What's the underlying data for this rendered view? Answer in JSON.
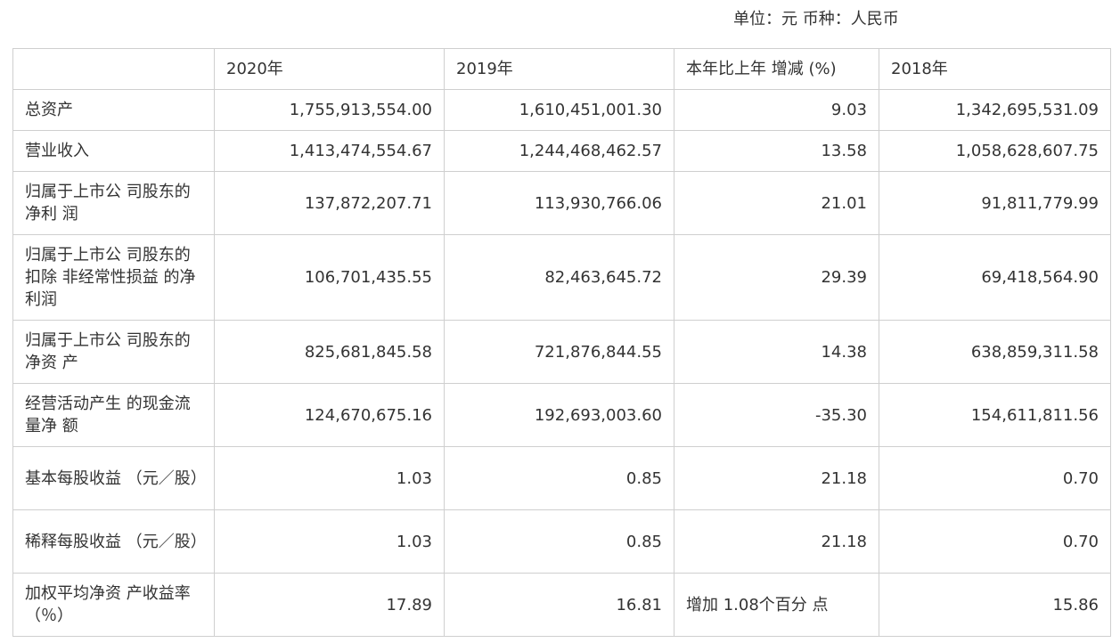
{
  "unit_note": "单位：元 币种：人民币",
  "header": [
    "",
    "2020年",
    "2019年",
    "本年比上年 增减 (%)",
    "2018年"
  ],
  "rows": [
    {
      "label": "总资产",
      "v2020": "1,755,913,554.00",
      "v2019": "1,610,451,001.30",
      "change": "9.03",
      "v2018": "1,342,695,531.09"
    },
    {
      "label": "营业收入",
      "v2020": "1,413,474,554.67",
      "v2019": "1,244,468,462.57",
      "change": "13.58",
      "v2018": "1,058,628,607.75"
    },
    {
      "label": "归属于上市公 司股东的净利 润",
      "v2020": "137,872,207.71",
      "v2019": "113,930,766.06",
      "change": "21.01",
      "v2018": "91,811,779.99"
    },
    {
      "label": "归属于上市公 司股东的扣除 非经常性损益 的净利润",
      "v2020": "106,701,435.55",
      "v2019": "82,463,645.72",
      "change": "29.39",
      "v2018": "69,418,564.90"
    },
    {
      "label": "归属于上市公 司股东的净资 产",
      "v2020": "825,681,845.58",
      "v2019": "721,876,844.55",
      "change": "14.38",
      "v2018": "638,859,311.58"
    },
    {
      "label": "经营活动产生 的现金流量净 额",
      "v2020": "124,670,675.16",
      "v2019": "192,693,003.60",
      "change": "-35.30",
      "v2018": "154,611,811.56"
    },
    {
      "label": "基本每股收益 （元／股）",
      "v2020": "1.03",
      "v2019": "0.85",
      "change": "21.18",
      "v2018": "0.70"
    },
    {
      "label": "稀释每股收益 （元／股）",
      "v2020": "1.03",
      "v2019": "0.85",
      "change": "21.18",
      "v2018": "0.70"
    },
    {
      "label": "加权平均净资 产收益率 （％）",
      "v2020": "17.89",
      "v2019": "16.81",
      "change": "增加 1.08个百分 点",
      "v2018": "15.86"
    }
  ]
}
